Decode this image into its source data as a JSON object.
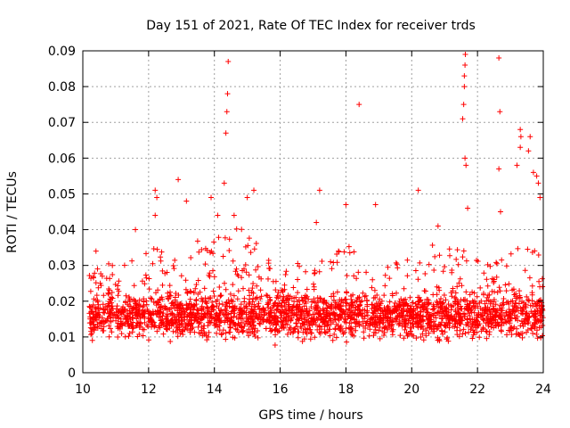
{
  "chart_data": {
    "type": "scatter",
    "title": "Day 151 of 2021, Rate Of TEC Index for receiver trds",
    "xlabel": "GPS time / hours",
    "ylabel": "ROTI / TECUs",
    "xlim": [
      10,
      24
    ],
    "ylim": [
      0,
      0.09
    ],
    "x_ticks": [
      10,
      12,
      14,
      16,
      18,
      20,
      22,
      24
    ],
    "x_tick_labels": [
      "10",
      "12",
      "14",
      "16",
      "18",
      "20",
      "22",
      "24"
    ],
    "y_ticks": [
      0,
      0.01,
      0.02,
      0.03,
      0.04,
      0.05,
      0.06,
      0.07,
      0.08,
      0.09
    ],
    "y_tick_labels": [
      "0",
      "0.01",
      "0.02",
      "0.03",
      "0.04",
      "0.05",
      "0.06",
      "0.07",
      "0.08",
      "0.09"
    ],
    "grid": true,
    "marker": "plus",
    "color": "#ff0000",
    "series": [
      {
        "name": "ROTI",
        "summary": "Dense cloud of points from 10.2 h to 24 h, mostly between 0.005 and 0.03 TECU, with sparse spikes up to ~0.09",
        "peaks": [
          {
            "x": 10.4,
            "y": 0.034
          },
          {
            "x": 11.6,
            "y": 0.04
          },
          {
            "x": 12.2,
            "y": 0.051
          },
          {
            "x": 12.25,
            "y": 0.049
          },
          {
            "x": 12.2,
            "y": 0.044
          },
          {
            "x": 12.9,
            "y": 0.054
          },
          {
            "x": 13.15,
            "y": 0.048
          },
          {
            "x": 13.9,
            "y": 0.049
          },
          {
            "x": 14.1,
            "y": 0.044
          },
          {
            "x": 14.3,
            "y": 0.053
          },
          {
            "x": 14.35,
            "y": 0.067
          },
          {
            "x": 14.38,
            "y": 0.073
          },
          {
            "x": 14.4,
            "y": 0.078
          },
          {
            "x": 14.42,
            "y": 0.087
          },
          {
            "x": 14.6,
            "y": 0.044
          },
          {
            "x": 15.2,
            "y": 0.051
          },
          {
            "x": 15.0,
            "y": 0.049
          },
          {
            "x": 17.2,
            "y": 0.051
          },
          {
            "x": 17.1,
            "y": 0.042
          },
          {
            "x": 18.0,
            "y": 0.047
          },
          {
            "x": 18.4,
            "y": 0.075
          },
          {
            "x": 18.9,
            "y": 0.047
          },
          {
            "x": 20.2,
            "y": 0.051
          },
          {
            "x": 20.8,
            "y": 0.041
          },
          {
            "x": 21.55,
            "y": 0.071
          },
          {
            "x": 21.58,
            "y": 0.075
          },
          {
            "x": 21.6,
            "y": 0.08
          },
          {
            "x": 21.6,
            "y": 0.083
          },
          {
            "x": 21.62,
            "y": 0.086
          },
          {
            "x": 21.63,
            "y": 0.089
          },
          {
            "x": 21.62,
            "y": 0.06
          },
          {
            "x": 21.65,
            "y": 0.058
          },
          {
            "x": 21.7,
            "y": 0.046
          },
          {
            "x": 22.65,
            "y": 0.088
          },
          {
            "x": 22.68,
            "y": 0.073
          },
          {
            "x": 22.65,
            "y": 0.057
          },
          {
            "x": 22.7,
            "y": 0.045
          },
          {
            "x": 23.2,
            "y": 0.058
          },
          {
            "x": 23.3,
            "y": 0.068
          },
          {
            "x": 23.32,
            "y": 0.066
          },
          {
            "x": 23.3,
            "y": 0.063
          },
          {
            "x": 23.6,
            "y": 0.066
          },
          {
            "x": 23.55,
            "y": 0.062
          },
          {
            "x": 23.7,
            "y": 0.056
          },
          {
            "x": 23.8,
            "y": 0.055
          },
          {
            "x": 23.85,
            "y": 0.053
          },
          {
            "x": 23.9,
            "y": 0.049
          }
        ]
      }
    ]
  }
}
